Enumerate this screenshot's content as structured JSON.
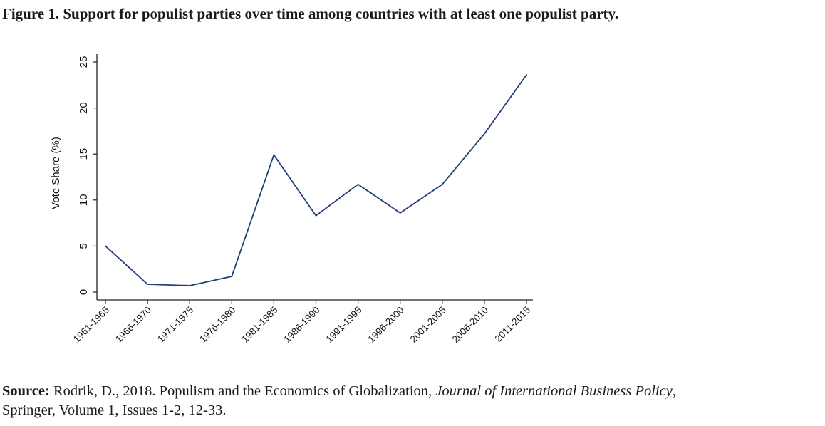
{
  "figure": {
    "title": "Figure 1. Support for populist parties over time among countries with at least one populist party."
  },
  "source": {
    "label": "Source:",
    "text_before_journal": " Rodrik, D., 2018. Populism and the Economics of Globalization, ",
    "journal": "Journal of International Business Policy",
    "text_after_journal": ",",
    "line2": "Springer, Volume 1, Issues 1-2, 12-33."
  },
  "chart_data": {
    "type": "line",
    "title": "Support for populist parties over time among countries with at least one populist party",
    "xlabel": "",
    "ylabel": "Vote Share (%)",
    "ylim": [
      0,
      25
    ],
    "yticks": [
      0,
      5,
      10,
      15,
      20,
      25
    ],
    "grid": false,
    "legend": "none",
    "line_color": "#1f3f74",
    "categories": [
      "1961-1965",
      "1966-1970",
      "1971-1975",
      "1976-1980",
      "1981-1985",
      "1986-1990",
      "1991-1995",
      "1996-2000",
      "2001-2005",
      "2006-2010",
      "2011-2015"
    ],
    "series": [
      {
        "name": "Vote Share (%)",
        "values": [
          5.0,
          0.85,
          0.7,
          1.7,
          14.9,
          8.3,
          11.7,
          8.6,
          11.7,
          17.2,
          23.6
        ]
      }
    ]
  }
}
